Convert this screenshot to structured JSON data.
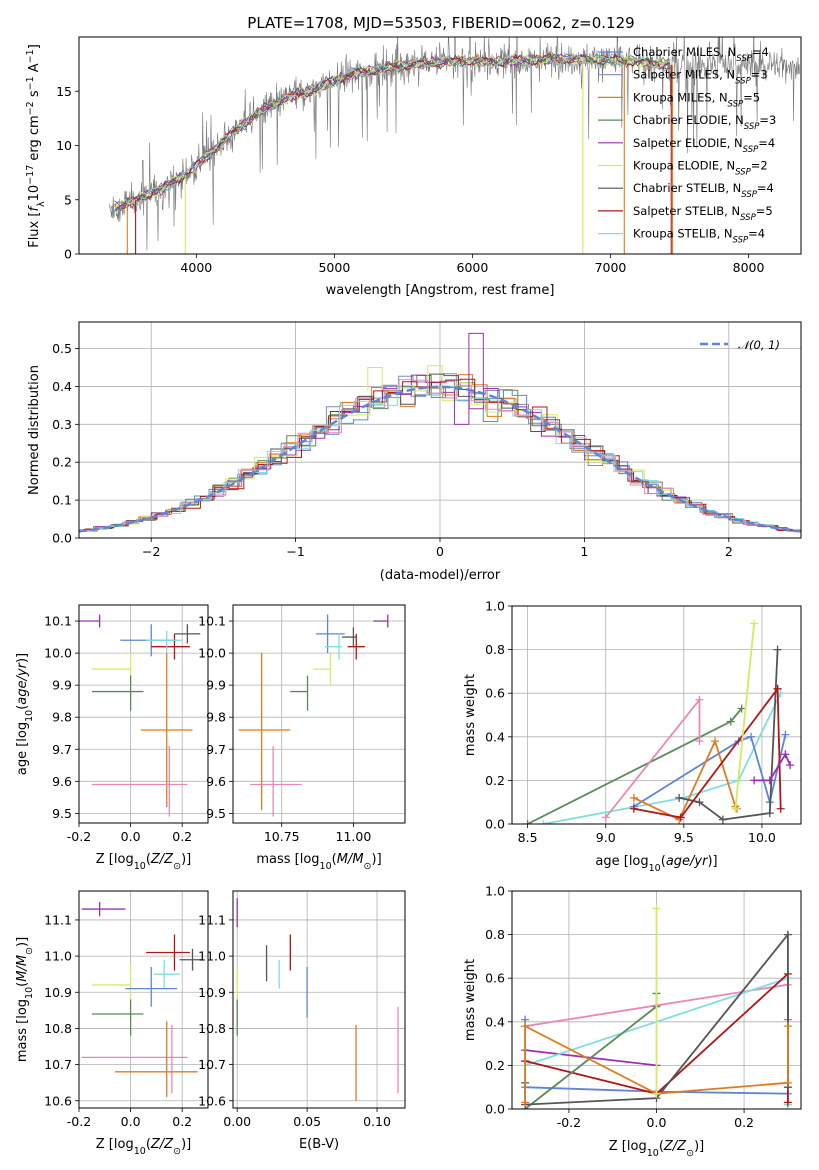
{
  "title": "PLATE=1708, MJD=53503, FIBERID=0062, z=0.129",
  "colors": {
    "Chabrier MILES": "#5e85d6",
    "Salpeter MILES": "#7e8fb5",
    "Kroupa MILES": "#e07c20",
    "Chabrier ELODIE": "#5a8a5a",
    "Salpeter ELODIE": "#9a30b0",
    "Kroupa ELODIE": "#d8e860",
    "Chabrier STELIB": "#555555",
    "Salpeter STELIB": "#b01818",
    "Kroupa STELIB": "#80dde0",
    "pink": "#e888b8",
    "normal": "#5e85d6",
    "grid": "#b0b0b0"
  },
  "chart_data": [
    {
      "id": "spectrum",
      "type": "line",
      "xlabel": "wavelength [Angstrom, rest frame]",
      "ylabel": "Flux [f_λ10⁻¹⁷ erg cm⁻² s⁻¹ A⁻¹]",
      "xlim": [
        3150,
        8380
      ],
      "ylim": [
        0,
        20
      ],
      "xticks": [
        4000,
        5000,
        6000,
        7000,
        8000
      ],
      "yticks": [
        0,
        5,
        10,
        15
      ],
      "grid": false,
      "legend_position": "top-right",
      "continuum_x": [
        3450,
        3550,
        3650,
        3750,
        3850,
        3950,
        4100,
        4300,
        4500,
        4700,
        4860,
        4900,
        5100,
        5300,
        5500,
        5700,
        5900,
        6100,
        6300,
        6500,
        6700,
        6900,
        7100,
        7300,
        7450
      ],
      "continuum_y": [
        4.4,
        4.9,
        5.5,
        6.0,
        6.8,
        7.5,
        9.3,
        11.6,
        13.4,
        14.6,
        15.2,
        15.5,
        16.5,
        17.0,
        17.4,
        17.6,
        17.8,
        17.7,
        17.8,
        17.9,
        18.0,
        17.9,
        17.8,
        17.6,
        17.4
      ],
      "series": [
        {
          "name": "Chabrier MILES, N_SSP=4",
          "label_main": "Chabrier MILES, N",
          "sub": "SSP",
          "tail": "=4",
          "color": "#5e85d6"
        },
        {
          "name": "Salpeter MILES, N_SSP=3",
          "label_main": "Salpeter MILES, N",
          "sub": "SSP",
          "tail": "=3",
          "color": "#7e8fb5"
        },
        {
          "name": "Kroupa MILES, N_SSP=5",
          "label_main": "Kroupa MILES, N",
          "sub": "SSP",
          "tail": "=5",
          "color": "#e07c20"
        },
        {
          "name": "Chabrier ELODIE, N_SSP=3",
          "label_main": "Chabrier ELODIE, N",
          "sub": "SSP",
          "tail": "=3",
          "color": "#5a8a5a"
        },
        {
          "name": "Salpeter ELODIE, N_SSP=4",
          "label_main": "Salpeter ELODIE, N",
          "sub": "SSP",
          "tail": "=4",
          "color": "#9a30b0"
        },
        {
          "name": "Kroupa ELODIE, N_SSP=2",
          "label_main": "Kroupa ELODIE, N",
          "sub": "SSP",
          "tail": "=2",
          "color": "#d8e860"
        },
        {
          "name": "Chabrier STELIB, N_SSP=4",
          "label_main": "Chabrier STELIB, N",
          "sub": "SSP",
          "tail": "=4",
          "color": "#555555"
        },
        {
          "name": "Salpeter STELIB, N_SSP=5",
          "label_main": "Salpeter STELIB, N",
          "sub": "SSP",
          "tail": "=5",
          "color": "#b01818"
        },
        {
          "name": "Kroupa STELIB, N_SSP=4",
          "label_main": "Kroupa STELIB, N",
          "sub": "SSP",
          "tail": "=4",
          "color": "#80dde0"
        }
      ]
    },
    {
      "id": "residuals",
      "type": "histogram",
      "xlabel": "(data-model)/error",
      "ylabel": "Normed distribution",
      "xlim": [
        -2.5,
        2.5
      ],
      "ylim": [
        0,
        0.57
      ],
      "xticks": [
        -2,
        -1,
        0,
        1,
        2
      ],
      "yticks": [
        0.0,
        0.1,
        0.2,
        0.3,
        0.4,
        0.5
      ],
      "grid": true,
      "legend": "𝒩(0, 1)",
      "legend_position": "top-right",
      "bin_width": 0.1,
      "notable_bins": {
        "Salpeter ELODIE": [
          {
            "x": 0.25,
            "y": 0.54
          },
          {
            "x": 0.15,
            "y": 0.3
          }
        ],
        "Kroupa ELODIE": [
          {
            "x": -0.45,
            "y": 0.45
          }
        ]
      }
    },
    {
      "id": "age_vs_Z",
      "type": "errorbar",
      "xlabel": "Z [log10(Z/Z⊙)]",
      "ylabel": "age  [log10(age/yr)]",
      "xlim": [
        -0.2,
        0.3
      ],
      "ylim": [
        9.47,
        10.15
      ],
      "xticks": [
        -0.2,
        0.0,
        0.2
      ],
      "yticks": [
        9.5,
        9.6,
        9.7,
        9.8,
        9.9,
        10.0,
        10.1
      ],
      "points": [
        {
          "c": "#9a30b0",
          "x": -0.12,
          "y": 10.1,
          "ex": [
            0.09,
            0.0
          ],
          "ey": [
            0.02,
            0.02
          ]
        },
        {
          "c": "#5e85d6",
          "x": 0.08,
          "y": 10.04,
          "ex": [
            0.12,
            0.1
          ],
          "ey": [
            0.05,
            0.05
          ]
        },
        {
          "c": "#555555",
          "x": 0.22,
          "y": 10.06,
          "ex": [
            0.05,
            0.05
          ],
          "ey": [
            0.03,
            0.03
          ]
        },
        {
          "c": "#b01818",
          "x": 0.17,
          "y": 10.02,
          "ex": [
            0.09,
            0.06
          ],
          "ey": [
            0.04,
            0.04
          ]
        },
        {
          "c": "#80dde0",
          "x": 0.14,
          "y": 10.04,
          "ex": [
            0.08,
            0.06
          ],
          "ey": [
            0.04,
            0.03
          ]
        },
        {
          "c": "#d8e860",
          "x": 0.0,
          "y": 9.95,
          "ex": [
            0.15,
            0.0
          ],
          "ey": [
            0.05,
            0.05
          ]
        },
        {
          "c": "#5a8a5a",
          "x": 0.0,
          "y": 9.88,
          "ex": [
            0.15,
            0.05
          ],
          "ey": [
            0.06,
            0.05
          ]
        },
        {
          "c": "#e07c20",
          "x": 0.14,
          "y": 9.76,
          "ex": [
            0.1,
            0.1
          ],
          "ey": [
            0.24,
            0.24
          ]
        },
        {
          "c": "#e888b8",
          "x": 0.15,
          "y": 9.59,
          "ex": [
            0.3,
            0.07
          ],
          "ey": [
            0.1,
            0.12
          ]
        }
      ]
    },
    {
      "id": "age_vs_mass",
      "type": "errorbar",
      "xlabel": "mass [log10(M/M⊙)]",
      "ylabel": "",
      "xlim": [
        10.58,
        11.18
      ],
      "ylim": [
        9.47,
        10.15
      ],
      "xticks": [
        10.75,
        11.0
      ],
      "yticks": [
        9.5,
        9.6,
        9.7,
        9.8,
        9.9,
        10.0,
        10.1
      ],
      "points": [
        {
          "c": "#9a30b0",
          "x": 11.12,
          "y": 10.1,
          "ex": [
            0.05,
            0.0
          ],
          "ey": [
            0.02,
            0.02
          ]
        },
        {
          "c": "#5e85d6",
          "x": 10.91,
          "y": 10.06,
          "ex": [
            0.04,
            0.06
          ],
          "ey": [
            0.06,
            0.06
          ]
        },
        {
          "c": "#555555",
          "x": 11.0,
          "y": 10.05,
          "ex": [
            0.04,
            0.01
          ],
          "ey": [
            0.03,
            0.03
          ]
        },
        {
          "c": "#b01818",
          "x": 11.01,
          "y": 10.02,
          "ex": [
            0.03,
            0.03
          ],
          "ey": [
            0.04,
            0.04
          ]
        },
        {
          "c": "#80dde0",
          "x": 10.95,
          "y": 10.02,
          "ex": [
            0.05,
            0.01
          ],
          "ey": [
            0.04,
            0.04
          ]
        },
        {
          "c": "#d8e860",
          "x": 10.92,
          "y": 9.95,
          "ex": [
            0.06,
            0.0
          ],
          "ey": [
            0.05,
            0.05
          ]
        },
        {
          "c": "#5a8a5a",
          "x": 10.84,
          "y": 9.88,
          "ex": [
            0.06,
            0.0
          ],
          "ey": [
            0.06,
            0.05
          ]
        },
        {
          "c": "#e07c20",
          "x": 10.68,
          "y": 9.76,
          "ex": [
            0.08,
            0.1
          ],
          "ey": [
            0.25,
            0.24
          ]
        },
        {
          "c": "#e888b8",
          "x": 10.72,
          "y": 9.59,
          "ex": [
            0.08,
            0.1
          ],
          "ey": [
            0.1,
            0.12
          ]
        }
      ]
    },
    {
      "id": "massweight_vs_age",
      "type": "line",
      "xlabel": "age  [log10(age/yr)]",
      "ylabel": "mass weight",
      "xlim": [
        8.4,
        10.25
      ],
      "ylim": [
        0,
        1.0
      ],
      "xticks": [
        8.5,
        9.0,
        9.5,
        10.0
      ],
      "yticks": [
        0.0,
        0.2,
        0.4,
        0.6,
        0.8,
        1.0
      ],
      "series": [
        {
          "c": "#5a8a5a",
          "x": [
            8.5,
            9.8,
            9.87
          ],
          "y": [
            0.0,
            0.47,
            0.53
          ]
        },
        {
          "c": "#80dde0",
          "x": [
            8.6,
            9.5,
            9.85,
            10.12
          ],
          "y": [
            0.0,
            0.12,
            0.2,
            0.6
          ]
        },
        {
          "c": "#e888b8",
          "x": [
            9.0,
            9.6,
            9.6
          ],
          "y": [
            0.03,
            0.57,
            0.38
          ]
        },
        {
          "c": "#5e85d6",
          "x": [
            9.18,
            9.85,
            9.93,
            10.05,
            10.15
          ],
          "y": [
            0.08,
            0.38,
            0.4,
            0.1,
            0.41
          ]
        },
        {
          "c": "#e07c20",
          "x": [
            9.18,
            9.47,
            9.7,
            9.83,
            9.84
          ],
          "y": [
            0.12,
            0.02,
            0.38,
            0.08,
            0.07
          ]
        },
        {
          "c": "#555555",
          "x": [
            9.47,
            9.6,
            9.75,
            10.05,
            10.1
          ],
          "y": [
            0.12,
            0.1,
            0.02,
            0.05,
            0.8
          ]
        },
        {
          "c": "#b01818",
          "x": [
            9.18,
            9.48,
            10.1,
            10.12,
            10.1
          ],
          "y": [
            0.07,
            0.03,
            0.62,
            0.07,
            0.62
          ]
        },
        {
          "c": "#d8e860",
          "x": [
            9.83,
            9.95
          ],
          "y": [
            0.07,
            0.92
          ]
        },
        {
          "c": "#9a30b0",
          "x": [
            9.95,
            10.05,
            10.15,
            10.18
          ],
          "y": [
            0.2,
            0.2,
            0.32,
            0.27
          ]
        }
      ]
    },
    {
      "id": "mass_vs_Z",
      "type": "errorbar",
      "xlabel": "Z [log10(Z/Z⊙)]",
      "ylabel": "mass [log10(M/M⊙)]",
      "xlim": [
        -0.2,
        0.3
      ],
      "ylim": [
        10.58,
        11.18
      ],
      "xticks": [
        -0.2,
        0.0,
        0.2
      ],
      "yticks": [
        10.6,
        10.7,
        10.8,
        10.9,
        11.0,
        11.1
      ],
      "points": [
        {
          "c": "#9a30b0",
          "x": -0.12,
          "y": 11.13,
          "ex": [
            0.07,
            0.1
          ],
          "ey": [
            0.02,
            0.02
          ]
        },
        {
          "c": "#555555",
          "x": 0.24,
          "y": 10.99,
          "ex": [
            0.05,
            0.04
          ],
          "ey": [
            0.03,
            0.03
          ]
        },
        {
          "c": "#b01818",
          "x": 0.17,
          "y": 11.01,
          "ex": [
            0.11,
            0.06
          ],
          "ey": [
            0.05,
            0.05
          ]
        },
        {
          "c": "#80dde0",
          "x": 0.13,
          "y": 10.95,
          "ex": [
            0.04,
            0.06
          ],
          "ey": [
            0.04,
            0.04
          ]
        },
        {
          "c": "#d8e860",
          "x": 0.0,
          "y": 10.92,
          "ex": [
            0.15,
            0.0
          ],
          "ey": [
            0.06,
            0.06
          ]
        },
        {
          "c": "#5e85d6",
          "x": 0.08,
          "y": 10.91,
          "ex": [
            0.1,
            0.1
          ],
          "ey": [
            0.05,
            0.06
          ]
        },
        {
          "c": "#5a8a5a",
          "x": 0.0,
          "y": 10.84,
          "ex": [
            0.15,
            0.05
          ],
          "ey": [
            0.06,
            0.04
          ]
        },
        {
          "c": "#e888b8",
          "x": 0.16,
          "y": 10.72,
          "ex": [
            0.35,
            0.06
          ],
          "ey": [
            0.1,
            0.09
          ]
        },
        {
          "c": "#e07c20",
          "x": 0.14,
          "y": 10.68,
          "ex": [
            0.2,
            0.12
          ],
          "ey": [
            0.07,
            0.14
          ]
        }
      ]
    },
    {
      "id": "mass_vs_EBV",
      "type": "errorbar",
      "xlabel": "E(B-V)",
      "ylabel": "",
      "xlim": [
        -0.003,
        0.12
      ],
      "ylim": [
        10.58,
        11.18
      ],
      "xticks": [
        0.0,
        0.05,
        0.1
      ],
      "yticks": [
        10.6,
        10.7,
        10.8,
        10.9,
        11.0,
        11.1
      ],
      "points": [
        {
          "c": "#9a30b0",
          "x": 0.0,
          "y": 11.12,
          "ex": [
            0,
            0
          ],
          "ey": [
            0.04,
            0.04
          ]
        },
        {
          "c": "#555555",
          "x": 0.021,
          "y": 10.98,
          "ex": [
            0,
            0
          ],
          "ey": [
            0.05,
            0.05
          ]
        },
        {
          "c": "#b01818",
          "x": 0.038,
          "y": 11.01,
          "ex": [
            0,
            0
          ],
          "ey": [
            0.05,
            0.05
          ]
        },
        {
          "c": "#80dde0",
          "x": 0.03,
          "y": 10.95,
          "ex": [
            0,
            0
          ],
          "ey": [
            0.04,
            0.04
          ]
        },
        {
          "c": "#5e85d6",
          "x": 0.05,
          "y": 10.91,
          "ex": [
            0,
            0
          ],
          "ey": [
            0.08,
            0.06
          ]
        },
        {
          "c": "#d8e860",
          "x": 0.0,
          "y": 10.92,
          "ex": [
            0,
            0
          ],
          "ey": [
            0.05,
            0.05
          ]
        },
        {
          "c": "#5a8a5a",
          "x": 0.0,
          "y": 10.84,
          "ex": [
            0,
            0
          ],
          "ey": [
            0.06,
            0.04
          ]
        },
        {
          "c": "#e07c20",
          "x": 0.085,
          "y": 10.68,
          "ex": [
            0,
            0
          ],
          "ey": [
            0.08,
            0.13
          ]
        },
        {
          "c": "#e888b8",
          "x": 0.115,
          "y": 10.72,
          "ex": [
            0,
            0
          ],
          "ey": [
            0.1,
            0.14
          ]
        }
      ]
    },
    {
      "id": "massweight_vs_Z",
      "type": "line",
      "xlabel": "Z [log10(Z/Z⊙)]",
      "ylabel": "mass weight",
      "xlim": [
        -0.33,
        0.33
      ],
      "ylim": [
        0,
        1.0
      ],
      "xticks": [
        -0.2,
        0.0,
        0.2
      ],
      "yticks": [
        0.0,
        0.2,
        0.4,
        0.6,
        0.8,
        1.0
      ],
      "series": [
        {
          "c": "#5e85d6",
          "x": [
            -0.3,
            -0.3,
            0.0,
            0.3,
            0.3
          ],
          "y": [
            0.41,
            0.1,
            0.08,
            0.07,
            0.41
          ]
        },
        {
          "c": "#e888b8",
          "x": [
            -0.3,
            0.3,
            0.3
          ],
          "y": [
            0.38,
            0.57,
            0.02
          ]
        },
        {
          "c": "#9a30b0",
          "x": [
            -0.3,
            0.0
          ],
          "y": [
            0.27,
            0.2
          ]
        },
        {
          "c": "#80dde0",
          "x": [
            -0.3,
            0.3,
            0.3
          ],
          "y": [
            0.2,
            0.6,
            0.02
          ]
        },
        {
          "c": "#b01818",
          "x": [
            -0.3,
            0.0,
            0.3,
            0.3
          ],
          "y": [
            0.22,
            0.07,
            0.62,
            0.03
          ]
        },
        {
          "c": "#5a8a5a",
          "x": [
            -0.3,
            0.0,
            0.0
          ],
          "y": [
            0.0,
            0.47,
            0.53
          ]
        },
        {
          "c": "#555555",
          "x": [
            -0.3,
            -0.3,
            0.0,
            0.3,
            0.3
          ],
          "y": [
            0.12,
            0.02,
            0.05,
            0.8,
            0.1
          ]
        },
        {
          "c": "#e07c20",
          "x": [
            -0.3,
            -0.3,
            0.0,
            0.3,
            0.3
          ],
          "y": [
            0.03,
            0.38,
            0.07,
            0.12,
            0.38
          ]
        },
        {
          "c": "#d8e860",
          "x": [
            0.0,
            0.0
          ],
          "y": [
            0.07,
            0.92
          ]
        }
      ]
    }
  ]
}
